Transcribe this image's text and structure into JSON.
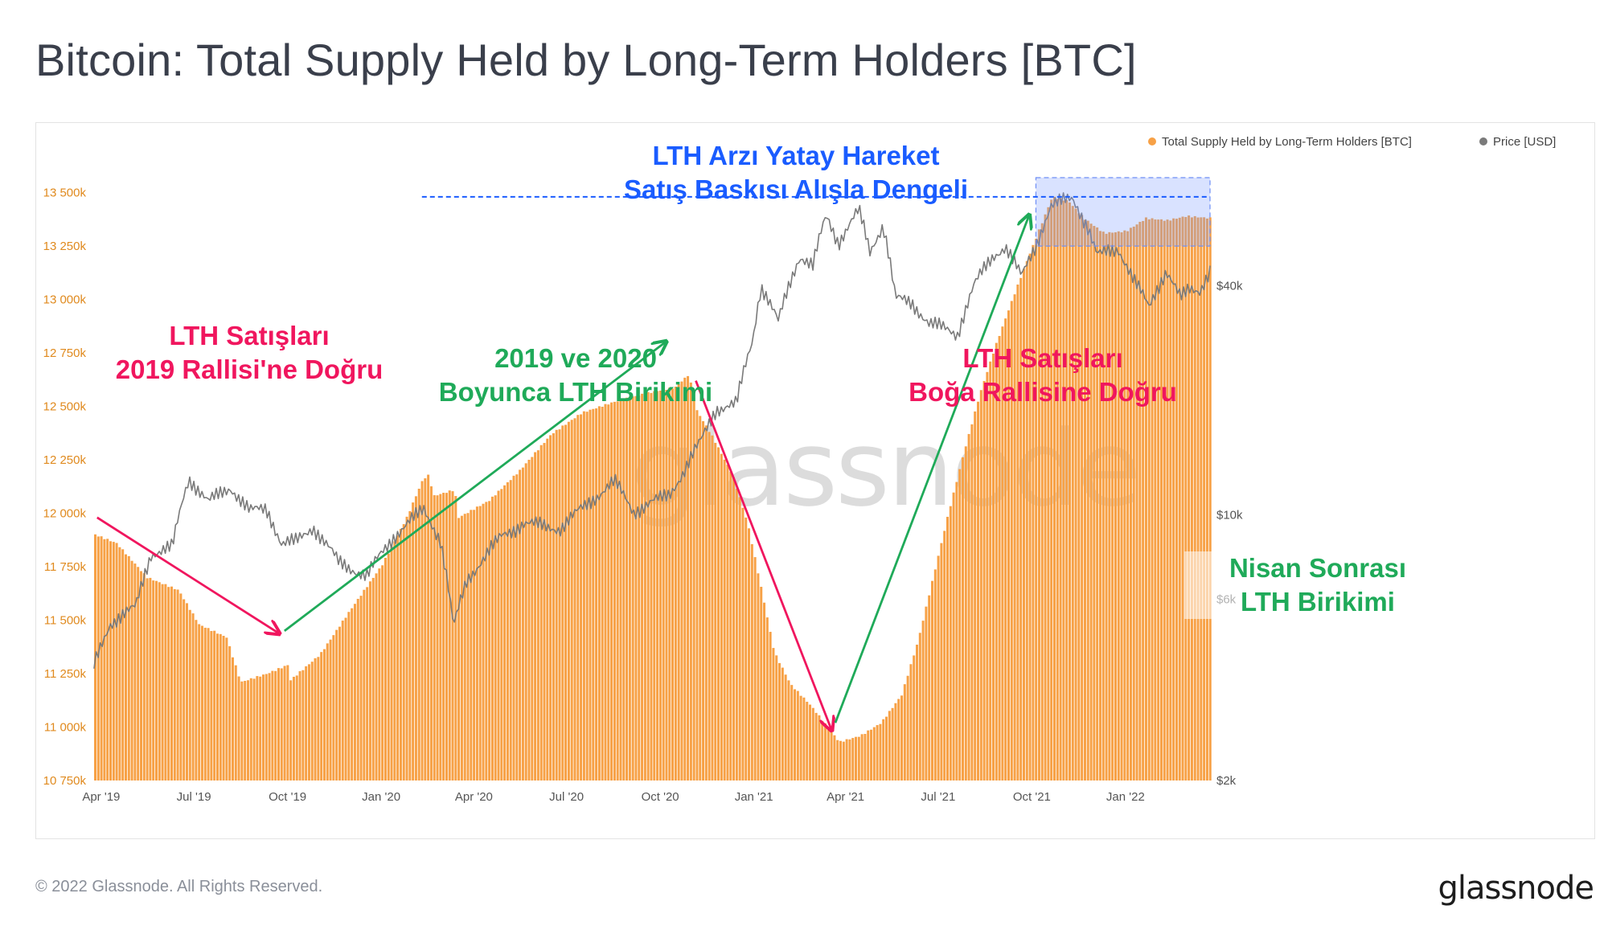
{
  "title": "Bitcoin: Total Supply Held by Long-Term Holders [BTC]",
  "footer": {
    "copyright": "© 2022 Glassnode. All Rights Reserved.",
    "logo": "glassnode"
  },
  "watermark": "glassnode",
  "colors": {
    "supply": "#f7a146",
    "price": "#7a7a7a",
    "left_axis": "#e08a1e",
    "green": "#1faa59",
    "pink": "#f0165e",
    "blue": "#1a5cff"
  },
  "chart_data": {
    "type": "bar",
    "x_range": [
      "2019-03-25",
      "2022-03-25"
    ],
    "xticks": [
      {
        "date": "2019-04-01",
        "label": "Apr '19"
      },
      {
        "date": "2019-07-01",
        "label": "Jul '19"
      },
      {
        "date": "2019-10-01",
        "label": "Oct '19"
      },
      {
        "date": "2020-01-01",
        "label": "Jan '20"
      },
      {
        "date": "2020-04-01",
        "label": "Apr '20"
      },
      {
        "date": "2020-07-01",
        "label": "Jul '20"
      },
      {
        "date": "2020-10-01",
        "label": "Oct '20"
      },
      {
        "date": "2021-01-01",
        "label": "Jan '21"
      },
      {
        "date": "2021-04-01",
        "label": "Apr '21"
      },
      {
        "date": "2021-07-01",
        "label": "Jul '21"
      },
      {
        "date": "2021-10-01",
        "label": "Oct '21"
      },
      {
        "date": "2022-01-01",
        "label": "Jan '22"
      }
    ],
    "left_axis": {
      "ylim": [
        10750000,
        13600000
      ],
      "ticks": [
        {
          "v": 13500000,
          "label": "13 500k"
        },
        {
          "v": 13250000,
          "label": "13 250k"
        },
        {
          "v": 13000000,
          "label": "13 000k"
        },
        {
          "v": 12750000,
          "label": "12 750k"
        },
        {
          "v": 12500000,
          "label": "12 500k"
        },
        {
          "v": 12250000,
          "label": "12 250k"
        },
        {
          "v": 12000000,
          "label": "12 000k"
        },
        {
          "v": 11750000,
          "label": "11 750k"
        },
        {
          "v": 11500000,
          "label": "11 500k"
        },
        {
          "v": 11250000,
          "label": "11 250k"
        },
        {
          "v": 11000000,
          "label": "11 000k"
        },
        {
          "v": 10750000,
          "label": "10 750k"
        }
      ]
    },
    "right_axis": {
      "scale": "log",
      "ylim": [
        2000,
        80000
      ],
      "ticks": [
        {
          "v": 40000,
          "label": "$40k"
        },
        {
          "v": 10000,
          "label": "$10k"
        },
        {
          "v": 6000,
          "label": "$6k"
        },
        {
          "v": 2000,
          "label": "$2k"
        }
      ]
    },
    "legend": {
      "position": "top-right",
      "items": [
        "Total Supply Held by Long-Term Holders [BTC]",
        "Price [USD]"
      ]
    },
    "series": [
      {
        "name": "Total Supply Held by Long-Term Holders [BTC]",
        "axis": "left",
        "points": [
          [
            "2019-03-25",
            11900000
          ],
          [
            "2019-04-15",
            11860000
          ],
          [
            "2019-05-15",
            11700000
          ],
          [
            "2019-06-15",
            11640000
          ],
          [
            "2019-07-05",
            11480000
          ],
          [
            "2019-08-01",
            11420000
          ],
          [
            "2019-08-15",
            11210000
          ],
          [
            "2019-09-10",
            11250000
          ],
          [
            "2019-09-30",
            11290000
          ],
          [
            "2019-10-03",
            11220000
          ],
          [
            "2019-11-01",
            11340000
          ],
          [
            "2019-12-01",
            11550000
          ],
          [
            "2020-01-01",
            11760000
          ],
          [
            "2020-01-25",
            11980000
          ],
          [
            "2020-02-10",
            12160000
          ],
          [
            "2020-02-16",
            12180000
          ],
          [
            "2020-02-20",
            12080000
          ],
          [
            "2020-03-12",
            12110000
          ],
          [
            "2020-03-16",
            11980000
          ],
          [
            "2020-04-15",
            12060000
          ],
          [
            "2020-05-15",
            12200000
          ],
          [
            "2020-06-15",
            12370000
          ],
          [
            "2020-07-15",
            12470000
          ],
          [
            "2020-08-15",
            12520000
          ],
          [
            "2020-09-15",
            12560000
          ],
          [
            "2020-10-15",
            12590000
          ],
          [
            "2020-10-28",
            12650000
          ],
          [
            "2020-11-05",
            12480000
          ],
          [
            "2020-11-20",
            12360000
          ],
          [
            "2020-12-10",
            12180000
          ],
          [
            "2020-12-25",
            11950000
          ],
          [
            "2021-01-05",
            11700000
          ],
          [
            "2021-01-20",
            11350000
          ],
          [
            "2021-02-05",
            11200000
          ],
          [
            "2021-02-25",
            11100000
          ],
          [
            "2021-03-15",
            10990000
          ],
          [
            "2021-03-25",
            10930000
          ],
          [
            "2021-04-15",
            10960000
          ],
          [
            "2021-05-05",
            11020000
          ],
          [
            "2021-05-25",
            11150000
          ],
          [
            "2021-06-10",
            11400000
          ],
          [
            "2021-06-25",
            11700000
          ],
          [
            "2021-07-10",
            12000000
          ],
          [
            "2021-07-25",
            12280000
          ],
          [
            "2021-08-10",
            12560000
          ],
          [
            "2021-08-25",
            12780000
          ],
          [
            "2021-09-10",
            12990000
          ],
          [
            "2021-09-25",
            13180000
          ],
          [
            "2021-10-10",
            13360000
          ],
          [
            "2021-10-20",
            13480000
          ],
          [
            "2021-11-05",
            13460000
          ],
          [
            "2021-11-20",
            13380000
          ],
          [
            "2021-12-10",
            13310000
          ],
          [
            "2022-01-01",
            13320000
          ],
          [
            "2022-01-20",
            13380000
          ],
          [
            "2022-02-10",
            13370000
          ],
          [
            "2022-03-01",
            13390000
          ],
          [
            "2022-03-25",
            13380000
          ]
        ]
      },
      {
        "name": "Price [USD]",
        "axis": "right",
        "points": [
          [
            "2019-03-25",
            4000
          ],
          [
            "2019-04-10",
            5200
          ],
          [
            "2019-05-05",
            5700
          ],
          [
            "2019-05-20",
            7900
          ],
          [
            "2019-06-10",
            8200
          ],
          [
            "2019-06-26",
            12500
          ],
          [
            "2019-07-15",
            10800
          ],
          [
            "2019-08-06",
            11800
          ],
          [
            "2019-08-25",
            10200
          ],
          [
            "2019-09-10",
            10400
          ],
          [
            "2019-09-25",
            8400
          ],
          [
            "2019-10-10",
            8500
          ],
          [
            "2019-10-26",
            9300
          ],
          [
            "2019-11-20",
            7500
          ],
          [
            "2019-12-18",
            6900
          ],
          [
            "2020-01-14",
            8800
          ],
          [
            "2020-02-12",
            10300
          ],
          [
            "2020-02-28",
            8600
          ],
          [
            "2020-03-12",
            5000
          ],
          [
            "2020-03-25",
            6700
          ],
          [
            "2020-04-29",
            8800
          ],
          [
            "2020-05-20",
            9500
          ],
          [
            "2020-06-25",
            9200
          ],
          [
            "2020-07-27",
            11000
          ],
          [
            "2020-08-17",
            12200
          ],
          [
            "2020-09-05",
            10200
          ],
          [
            "2020-10-10",
            11300
          ],
          [
            "2020-10-25",
            13100
          ],
          [
            "2020-11-10",
            15600
          ],
          [
            "2020-11-25",
            19000
          ],
          [
            "2020-12-15",
            19500
          ],
          [
            "2020-12-31",
            29000
          ],
          [
            "2021-01-08",
            40000
          ],
          [
            "2021-01-25",
            32000
          ],
          [
            "2021-02-15",
            48000
          ],
          [
            "2021-02-28",
            45000
          ],
          [
            "2021-03-13",
            61000
          ],
          [
            "2021-03-25",
            52000
          ],
          [
            "2021-04-14",
            63000
          ],
          [
            "2021-04-25",
            49000
          ],
          [
            "2021-05-08",
            58000
          ],
          [
            "2021-05-20",
            37000
          ],
          [
            "2021-06-05",
            36000
          ],
          [
            "2021-06-22",
            32000
          ],
          [
            "2021-07-20",
            29800
          ],
          [
            "2021-08-05",
            40000
          ],
          [
            "2021-08-25",
            48000
          ],
          [
            "2021-09-05",
            51000
          ],
          [
            "2021-09-21",
            42000
          ],
          [
            "2021-10-05",
            51000
          ],
          [
            "2021-10-20",
            65000
          ],
          [
            "2021-11-10",
            68000
          ],
          [
            "2021-11-25",
            57000
          ],
          [
            "2021-12-04",
            48000
          ],
          [
            "2021-12-25",
            50000
          ],
          [
            "2022-01-10",
            41000
          ],
          [
            "2022-01-24",
            35000
          ],
          [
            "2022-02-10",
            44000
          ],
          [
            "2022-02-24",
            37000
          ],
          [
            "2022-03-05",
            39000
          ],
          [
            "2022-03-15",
            39000
          ],
          [
            "2022-03-25",
            44000
          ]
        ]
      }
    ],
    "annotations": [
      {
        "text_lines": [
          "LTH Arzı Yatay Hareket",
          "Satış Baskısı Alışla Dengeli"
        ],
        "color": "#1a5cff"
      },
      {
        "text_lines": [
          "LTH Satışları",
          "2019 Rallisi'ne Doğru"
        ],
        "color": "#f0165e"
      },
      {
        "text_lines": [
          "2019 ve 2020",
          "Boyunca LTH Birikimi"
        ],
        "color": "#1faa59"
      },
      {
        "text_lines": [
          "LTH Satışları",
          "Boğa Rallisine Doğru"
        ],
        "color": "#f0165e"
      },
      {
        "text_lines": [
          "Nisan Sonrası",
          "LTH Birikimi"
        ],
        "color": "#1faa59"
      }
    ],
    "reference_line": {
      "value": 13480000,
      "axis": "left",
      "style": "dashed",
      "from": "2020-11-15",
      "to": "2022-03-25"
    },
    "highlight_box": {
      "from": "2021-10-05",
      "to": "2022-03-25",
      "ylim": [
        13250000,
        13570000
      ]
    }
  }
}
